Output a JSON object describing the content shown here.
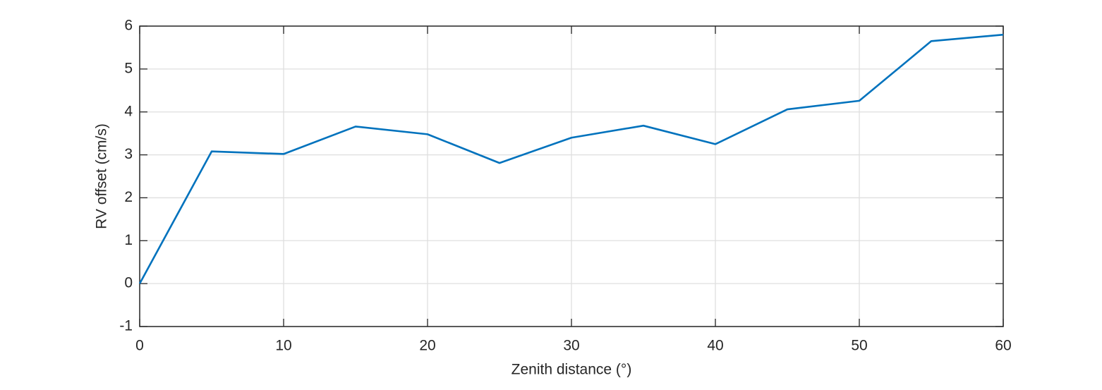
{
  "chart_data": {
    "type": "line",
    "xlabel": "Zenith distance (°)",
    "ylabel": "RV offset (cm/s)",
    "x": [
      0,
      5,
      10,
      15,
      20,
      25,
      30,
      35,
      40,
      45,
      50,
      55,
      60
    ],
    "values": [
      0,
      3.08,
      3.02,
      3.66,
      3.48,
      2.81,
      3.4,
      3.68,
      3.25,
      4.06,
      4.26,
      5.65,
      5.8
    ],
    "color": "#0072bd",
    "xlim": [
      0,
      60
    ],
    "xticks": [
      0,
      10,
      20,
      30,
      40,
      50,
      60
    ],
    "ylim": [
      -1,
      6
    ],
    "yticks": [
      -1,
      0,
      1,
      2,
      3,
      4,
      5,
      6
    ],
    "grid": true
  }
}
